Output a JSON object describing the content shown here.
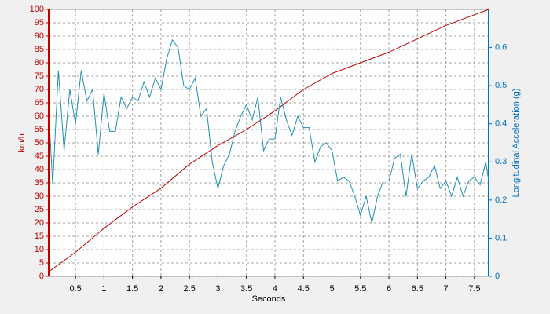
{
  "chart_data": {
    "type": "line",
    "xlabel": "Seconds",
    "ylabel": "km/h",
    "y2label": "Longitudinal Acceleration (g)",
    "xlim": [
      0.03,
      7.75
    ],
    "ylim": [
      0,
      100
    ],
    "y2lim": [
      0,
      0.7
    ],
    "xticks": [
      0.5,
      1,
      1.5,
      2,
      2.5,
      3,
      3.5,
      4,
      4.5,
      5,
      5.5,
      6,
      6.5,
      7,
      7.5
    ],
    "yticks": [
      0,
      5,
      10,
      15,
      20,
      25,
      30,
      35,
      40,
      45,
      50,
      55,
      60,
      65,
      70,
      75,
      80,
      85,
      90,
      95,
      100
    ],
    "y2ticks": [
      0,
      0.1,
      0.2,
      0.3,
      0.4,
      0.5,
      0.6
    ],
    "grid": true,
    "ycolor": "#c00000",
    "y2color": "#0070c0",
    "series": [
      {
        "color": "#c00000",
        "axis": "y",
        "x": [
          0.05,
          0.5,
          1,
          1.5,
          2,
          2.5,
          3,
          3.5,
          4,
          4.5,
          5,
          5.5,
          6,
          6.5,
          7,
          7.5,
          7.75
        ],
        "values": [
          2,
          9,
          18,
          26,
          33,
          42,
          49,
          55,
          62,
          70,
          76,
          80,
          84,
          89,
          94,
          98,
          100
        ]
      },
      {
        "color": "#1f8fb4",
        "axis": "y2",
        "x": [
          0.05,
          0.1,
          0.2,
          0.3,
          0.4,
          0.5,
          0.6,
          0.7,
          0.8,
          0.9,
          1,
          1.1,
          1.2,
          1.3,
          1.4,
          1.5,
          1.6,
          1.7,
          1.8,
          1.9,
          2,
          2.1,
          2.2,
          2.3,
          2.4,
          2.5,
          2.6,
          2.7,
          2.8,
          2.9,
          3,
          3.1,
          3.2,
          3.3,
          3.4,
          3.5,
          3.6,
          3.7,
          3.8,
          3.9,
          4,
          4.1,
          4.2,
          4.3,
          4.4,
          4.5,
          4.6,
          4.7,
          4.8,
          4.9,
          5,
          5.1,
          5.2,
          5.3,
          5.4,
          5.5,
          5.6,
          5.7,
          5.8,
          5.9,
          6,
          6.1,
          6.2,
          6.3,
          6.4,
          6.5,
          6.6,
          6.7,
          6.8,
          6.9,
          7,
          7.1,
          7.2,
          7.3,
          7.4,
          7.5,
          7.6,
          7.7,
          7.75
        ],
        "values": [
          0.38,
          0.24,
          0.54,
          0.33,
          0.49,
          0.4,
          0.54,
          0.46,
          0.49,
          0.32,
          0.48,
          0.38,
          0.38,
          0.47,
          0.44,
          0.47,
          0.46,
          0.51,
          0.47,
          0.52,
          0.49,
          0.57,
          0.62,
          0.6,
          0.5,
          0.49,
          0.52,
          0.42,
          0.44,
          0.3,
          0.23,
          0.29,
          0.32,
          0.38,
          0.42,
          0.45,
          0.41,
          0.47,
          0.33,
          0.36,
          0.36,
          0.47,
          0.41,
          0.37,
          0.42,
          0.39,
          0.39,
          0.3,
          0.34,
          0.35,
          0.33,
          0.25,
          0.26,
          0.25,
          0.21,
          0.16,
          0.21,
          0.14,
          0.21,
          0.25,
          0.25,
          0.31,
          0.32,
          0.21,
          0.32,
          0.23,
          0.25,
          0.26,
          0.29,
          0.23,
          0.25,
          0.21,
          0.26,
          0.21,
          0.25,
          0.26,
          0.24,
          0.3,
          0.25
        ]
      }
    ]
  }
}
